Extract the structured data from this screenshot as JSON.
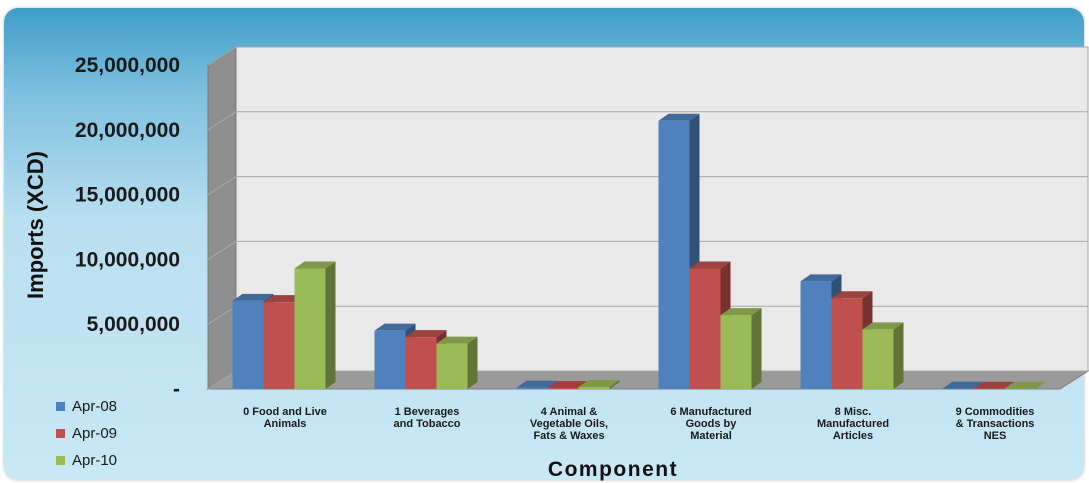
{
  "chart_data": {
    "type": "bar",
    "style": "3d-clustered-column",
    "categories": [
      [
        "0   Food and Live",
        "Animals"
      ],
      [
        "1   Beverages",
        "and Tobacco"
      ],
      [
        "4   Animal &",
        "Vegetable Oils,",
        "Fats & Waxes"
      ],
      [
        "6   Manufactured",
        "Goods by",
        "Material"
      ],
      [
        "8   Misc.",
        "Manufactured",
        "Articles"
      ],
      [
        "9   Commodities",
        "& Transactions",
        "NES"
      ]
    ],
    "series": [
      {
        "name": "Apr-08",
        "color": "#4f81bd",
        "values": [
          6800000,
          4500000,
          100000,
          20700000,
          8300000,
          30000
        ]
      },
      {
        "name": "Apr-09",
        "color": "#c0504d",
        "values": [
          6700000,
          4000000,
          80000,
          9300000,
          7000000,
          20000
        ]
      },
      {
        "name": "Apr-10",
        "color": "#9bbb59",
        "values": [
          9300000,
          3500000,
          150000,
          5700000,
          4600000,
          20000
        ]
      }
    ],
    "yticks": [
      {
        "value": 0,
        "label": "-"
      },
      {
        "value": 5000000,
        "label": "5,000,000"
      },
      {
        "value": 10000000,
        "label": "10,000,000"
      },
      {
        "value": 15000000,
        "label": "15,000,000"
      },
      {
        "value": 20000000,
        "label": "20,000,000"
      },
      {
        "value": 25000000,
        "label": "25,000,000"
      }
    ],
    "ylim": [
      0,
      25000000
    ],
    "xlabel": "Component",
    "ylabel": "Imports (XCD)",
    "legend_position": "bottom-left",
    "grid": true
  }
}
